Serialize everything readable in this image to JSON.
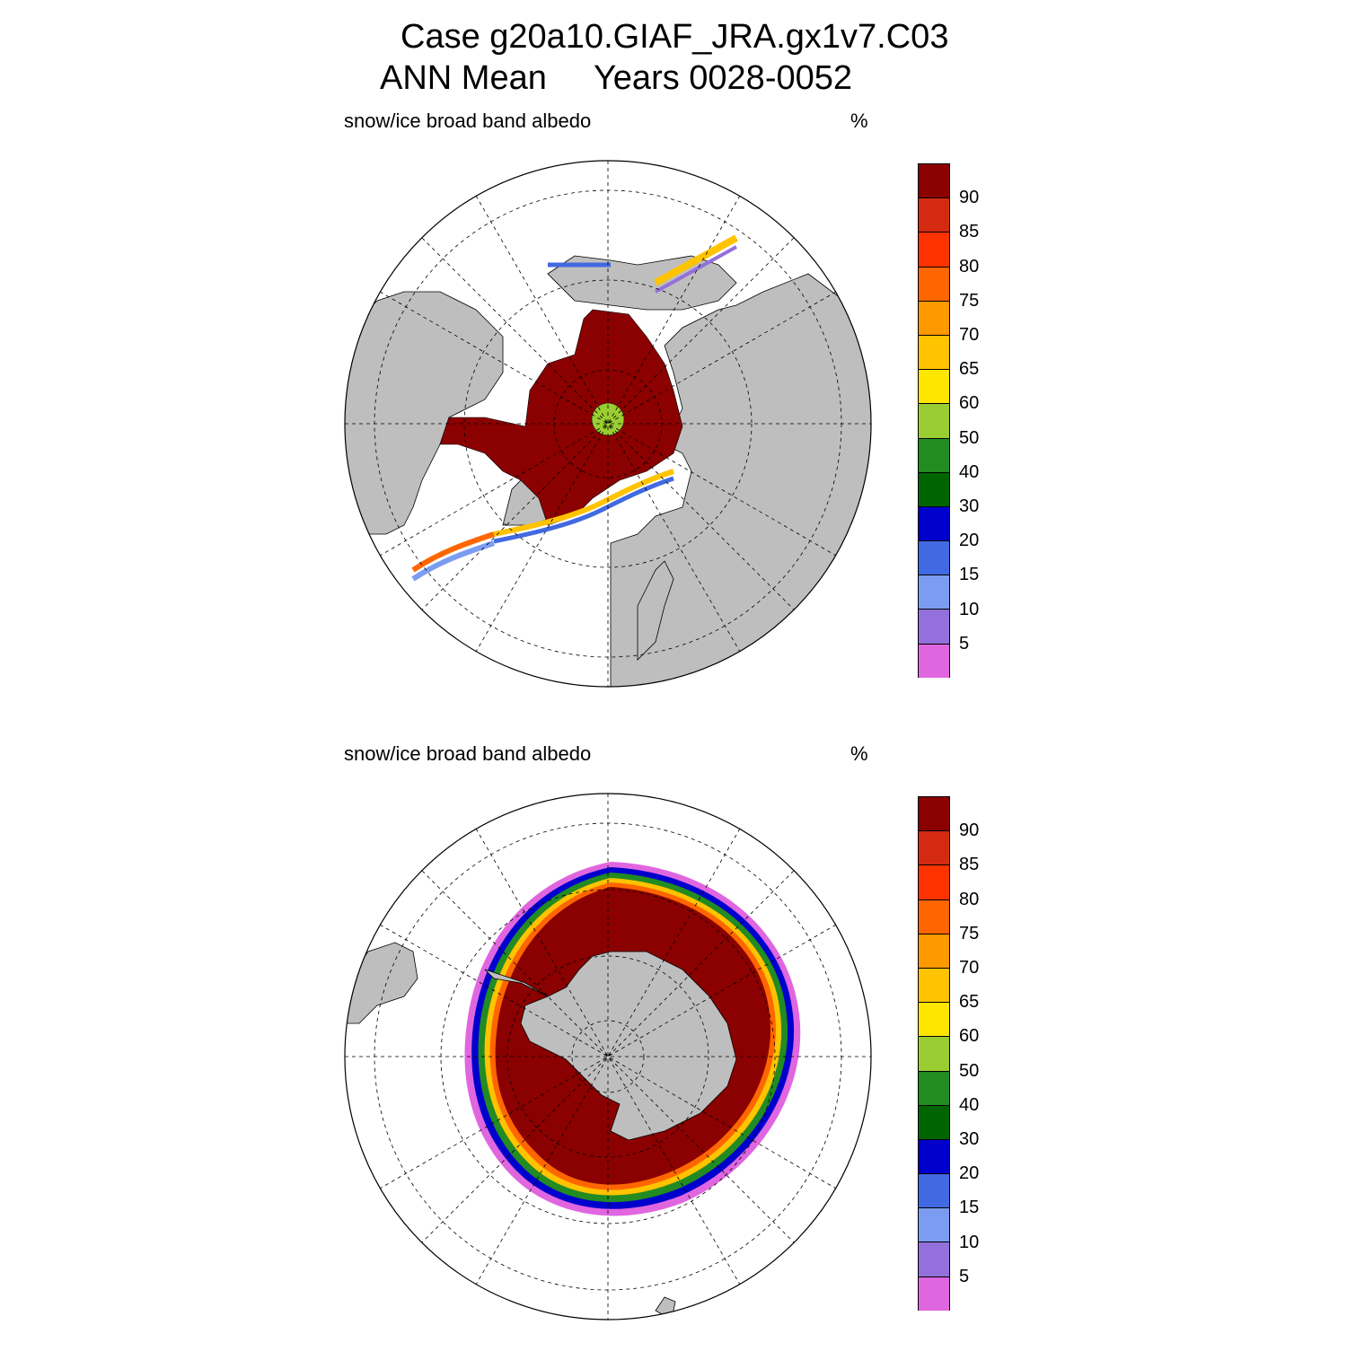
{
  "title": {
    "line1": "Case g20a10.GIAF_JRA.gx1v7.C03",
    "line2": "ANN Mean     Years 0028-0052"
  },
  "panels": [
    {
      "id": "north",
      "variable": "snow/ice broad band albedo",
      "units": "%"
    },
    {
      "id": "south",
      "variable": "snow/ice broad band albedo",
      "units": "%"
    }
  ],
  "colorbar": {
    "labels": [
      "90",
      "85",
      "80",
      "75",
      "70",
      "65",
      "60",
      "50",
      "40",
      "30",
      "20",
      "15",
      "10",
      "5"
    ],
    "colors": [
      "#8b0000",
      "#d52a12",
      "#ff3300",
      "#ff6600",
      "#ff9900",
      "#ffc300",
      "#ffe600",
      "#9acd32",
      "#228b22",
      "#006400",
      "#0000cd",
      "#4169e1",
      "#7b9cf0",
      "#9370db",
      "#e066e0"
    ]
  },
  "map_colors": {
    "land": "#bebebe",
    "ocean": "#ffffff",
    "ice_core": "#8b0000"
  }
}
